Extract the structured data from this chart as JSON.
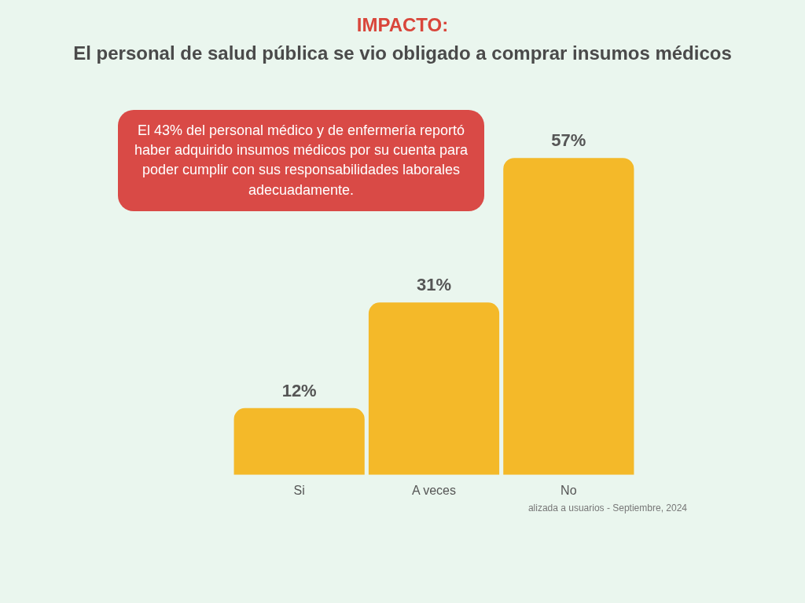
{
  "chart_data": {
    "type": "bar",
    "title": "IMPACTO:",
    "subtitle": "El personal de salud pública se vio obligado a comprar insumos médicos",
    "categories": [
      "Si",
      "A veces",
      "No"
    ],
    "values": [
      12,
      31,
      57
    ],
    "value_labels": [
      "12%",
      "31%",
      "57%"
    ],
    "color": "#f4b929",
    "annotations": [
      "El 43% del personal médico y de enfermería reportó haber adquirido insumos médicos por su cuenta para poder cumplir con sus responsabilidades laborales adecuadamente.",
      "alizada a usuarios - Septiembre, 2024"
    ]
  }
}
